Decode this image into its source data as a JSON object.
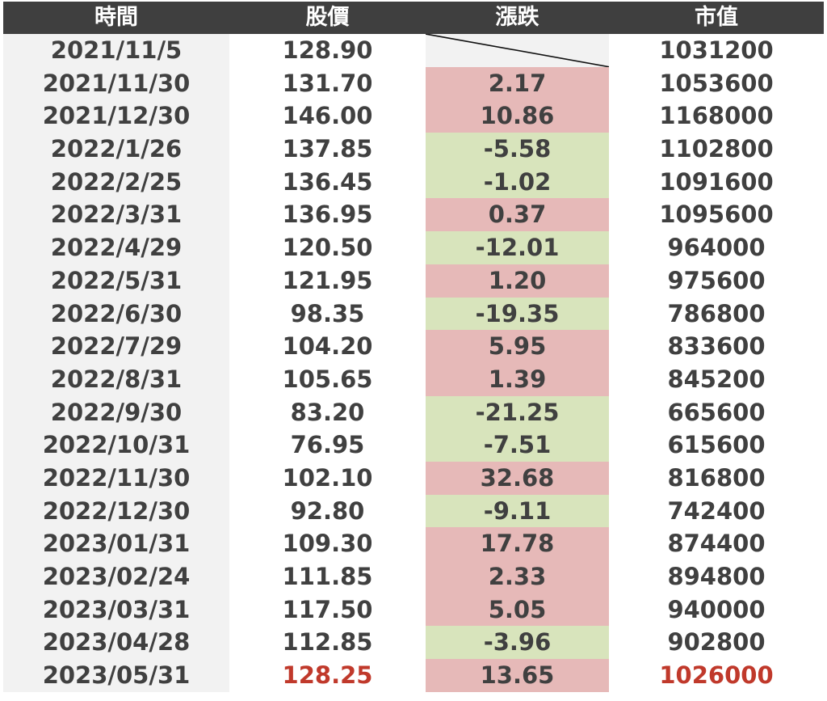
{
  "headers": {
    "date": "時間",
    "price": "股價",
    "change": "漲跌",
    "value": "市值"
  },
  "colors": {
    "header_bg": "#3f3f3f",
    "up_bg": "#e6b9b8",
    "down_bg": "#d8e4bc",
    "highlight_text": "#c0392b"
  },
  "rows": [
    {
      "date": "2021/11/5",
      "price": "128.90",
      "change": "",
      "value": "1031200",
      "trend": "none"
    },
    {
      "date": "2021/11/30",
      "price": "131.70",
      "change": "2.17",
      "value": "1053600",
      "trend": "up"
    },
    {
      "date": "2021/12/30",
      "price": "146.00",
      "change": "10.86",
      "value": "1168000",
      "trend": "up"
    },
    {
      "date": "2022/1/26",
      "price": "137.85",
      "change": "-5.58",
      "value": "1102800",
      "trend": "down"
    },
    {
      "date": "2022/2/25",
      "price": "136.45",
      "change": "-1.02",
      "value": "1091600",
      "trend": "down"
    },
    {
      "date": "2022/3/31",
      "price": "136.95",
      "change": "0.37",
      "value": "1095600",
      "trend": "up"
    },
    {
      "date": "2022/4/29",
      "price": "120.50",
      "change": "-12.01",
      "value": "964000",
      "trend": "down"
    },
    {
      "date": "2022/5/31",
      "price": "121.95",
      "change": "1.20",
      "value": "975600",
      "trend": "up"
    },
    {
      "date": "2022/6/30",
      "price": "98.35",
      "change": "-19.35",
      "value": "786800",
      "trend": "down"
    },
    {
      "date": "2022/7/29",
      "price": "104.20",
      "change": "5.95",
      "value": "833600",
      "trend": "up"
    },
    {
      "date": "2022/8/31",
      "price": "105.65",
      "change": "1.39",
      "value": "845200",
      "trend": "up"
    },
    {
      "date": "2022/9/30",
      "price": "83.20",
      "change": "-21.25",
      "value": "665600",
      "trend": "down"
    },
    {
      "date": "2022/10/31",
      "price": "76.95",
      "change": "-7.51",
      "value": "615600",
      "trend": "down"
    },
    {
      "date": "2022/11/30",
      "price": "102.10",
      "change": "32.68",
      "value": "816800",
      "trend": "up"
    },
    {
      "date": "2022/12/30",
      "price": "92.80",
      "change": "-9.11",
      "value": "742400",
      "trend": "down"
    },
    {
      "date": "2023/01/31",
      "price": "109.30",
      "change": "17.78",
      "value": "874400",
      "trend": "up"
    },
    {
      "date": "2023/02/24",
      "price": "111.85",
      "change": "2.33",
      "value": "894800",
      "trend": "up"
    },
    {
      "date": "2023/03/31",
      "price": "117.50",
      "change": "5.05",
      "value": "940000",
      "trend": "up"
    },
    {
      "date": "2023/04/28",
      "price": "112.85",
      "change": "-3.96",
      "value": "902800",
      "trend": "down"
    },
    {
      "date": "2023/05/31",
      "price": "128.25",
      "change": "13.65",
      "value": "1026000",
      "trend": "up",
      "highlight": true
    }
  ]
}
